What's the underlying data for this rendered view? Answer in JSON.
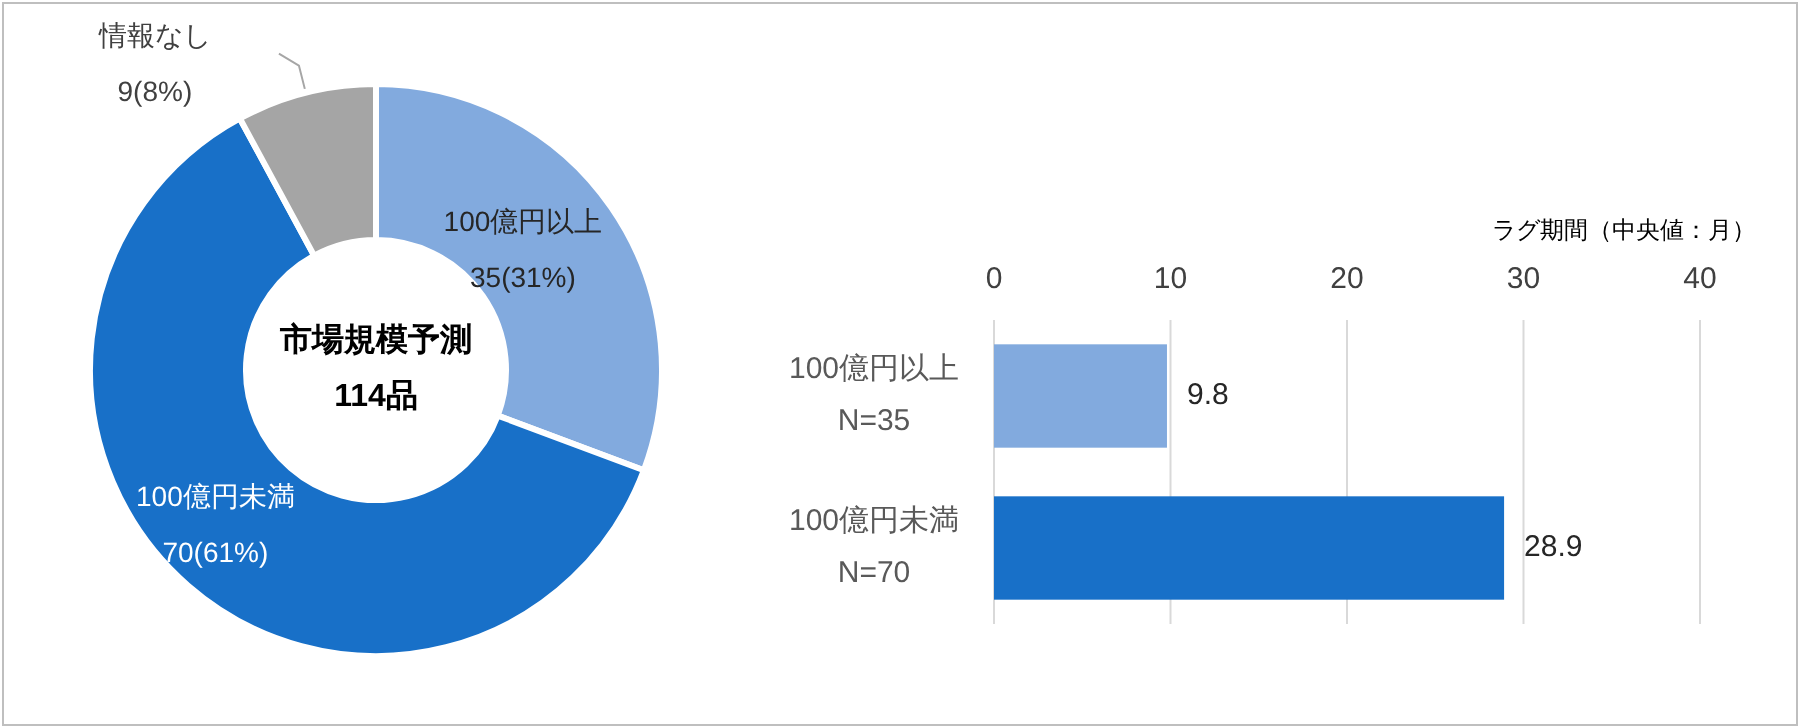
{
  "chart_data": [
    {
      "type": "donut",
      "categories": [
        "100億円以上",
        "100億円未満",
        "情報なし"
      ],
      "values": [
        35,
        70,
        9
      ],
      "colors": [
        "#82aade",
        "#1870c8",
        "#a5a5a5"
      ],
      "value_labels": [
        "35(31%)",
        "70(61%)",
        "9(8%)"
      ],
      "annotations": [
        "市場規模予測",
        "114品"
      ]
    },
    {
      "type": "bar",
      "orientation": "horizontal",
      "categories": [
        "100億円以上\nN=35",
        "100億円未満\nN=70"
      ],
      "values": [
        9.8,
        28.9
      ],
      "colors": [
        "#82aade",
        "#1870c8"
      ],
      "xlim": [
        0,
        40
      ],
      "xticks": [
        0,
        10,
        20,
        30,
        40
      ],
      "xlabel": "ラグ期間（中央値：月）",
      "grid": "x",
      "data_labels": true
    }
  ]
}
